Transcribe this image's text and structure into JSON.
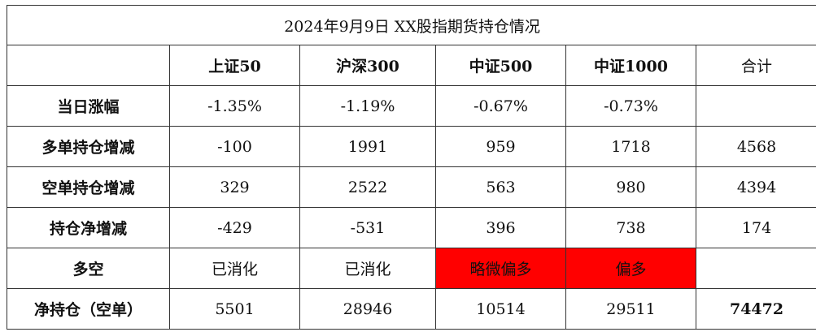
{
  "title": "2024年9月9日  XX股指期货持仓情况",
  "headers": [
    "",
    "上证50",
    "沪深300",
    "中证500",
    "中证1000",
    "合计"
  ],
  "rows": [
    {
      "label": "当日涨幅",
      "values": [
        "-1.35%",
        "-1.19%",
        "-0.67%",
        "-0.73%",
        ""
      ]
    },
    {
      "label": "多单持仓增减",
      "values": [
        "-100",
        "1991",
        "959",
        "1718",
        "4568"
      ]
    },
    {
      "label": "空单持仓增减",
      "values": [
        "329",
        "2522",
        "563",
        "980",
        "4394"
      ]
    },
    {
      "label": "持仓净增减",
      "values": [
        "-429",
        "-531",
        "396",
        "738",
        "174"
      ]
    },
    {
      "label": "多空",
      "values": [
        "已消化",
        "已消化",
        "略微偏多",
        "偏多",
        ""
      ]
    },
    {
      "label": "净持仓（空单）",
      "values": [
        "5501",
        "28946",
        "10514",
        "29511",
        "74472"
      ]
    }
  ],
  "highlight_color": "#ff0000"
}
